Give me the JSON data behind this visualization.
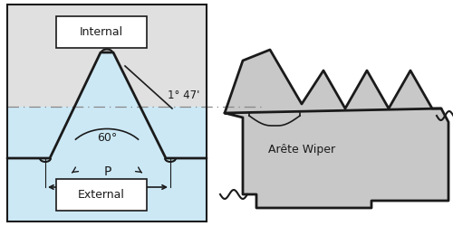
{
  "bg_gray": "#e0e0e0",
  "bg_blue": "#cce8f5",
  "line_color": "#1a1a1a",
  "insert_gray": "#c8c8c8",
  "white": "#ffffff",
  "title_internal": "Internal",
  "title_external": "External",
  "label_60": "60°",
  "label_angle": "1° 47'",
  "label_p": "P",
  "label_wiper": "Arête Wiper",
  "figsize": [
    5.0,
    2.5
  ],
  "dpi": 100
}
